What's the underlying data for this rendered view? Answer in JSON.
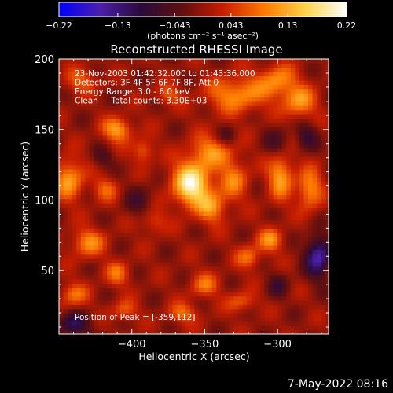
{
  "chart_data": {
    "type": "heatmap",
    "title": "Reconstructed RHESSI Image",
    "xlabel": "Heliocentric X (arcsec)",
    "ylabel": "Heliocentric Y (arcsec)",
    "xlim": [
      -450,
      -265
    ],
    "ylim": [
      5,
      200
    ],
    "xticks": [
      -400,
      -350,
      -300
    ],
    "yticks": [
      50,
      100,
      150,
      200
    ],
    "xtick_labels": [
      "−400",
      "−350",
      "−300"
    ],
    "ytick_labels": [
      "50",
      "100",
      "150",
      "200"
    ],
    "colorbar": {
      "range": [
        -0.22,
        0.22
      ],
      "ticks": [
        -0.22,
        -0.13,
        -0.043,
        0.043,
        0.13,
        0.22
      ],
      "tick_labels": [
        "−0.22",
        "−0.13",
        "−0.043",
        "0.043",
        "0.13",
        "0.22"
      ],
      "unit": "(photons cm⁻² s⁻¹ asec⁻²)",
      "colors": [
        "#0000ff",
        "#4b1fa8",
        "#2a0a3a",
        "#5e0f10",
        "#c81e00",
        "#ff7a00",
        "#ffd24a",
        "#ffffff"
      ]
    },
    "annotations": [
      "23-Nov-2003 01:42:32.000 to 01:43:36.000",
      "Detectors: 3F 4F 5F 6F 7F 8F, Att 0",
      "Energy Range: 3.0 - 6.0 keV",
      "Clean     Total counts: 3.30E+03"
    ],
    "peak_label": "Position of Peak = [-359,112]",
    "peak": {
      "x": -359,
      "y": 112,
      "value": 0.22
    },
    "grid": false,
    "sources": [
      {
        "x": -359,
        "y": 112,
        "sx": 9,
        "sy": 11,
        "amp": 0.2
      },
      {
        "x": -345,
        "y": 95,
        "sx": 7,
        "sy": 8,
        "amp": 0.1
      },
      {
        "x": -443,
        "y": 115,
        "sx": 7,
        "sy": 10,
        "amp": 0.12
      },
      {
        "x": -410,
        "y": 150,
        "sx": 7,
        "sy": 6,
        "amp": 0.12
      },
      {
        "x": -392,
        "y": 135,
        "sx": 5,
        "sy": 6,
        "amp": 0.08
      },
      {
        "x": -418,
        "y": 108,
        "sx": 6,
        "sy": 6,
        "amp": 0.07
      },
      {
        "x": -345,
        "y": 135,
        "sx": 10,
        "sy": 8,
        "amp": 0.1
      },
      {
        "x": -328,
        "y": 175,
        "sx": 14,
        "sy": 9,
        "amp": 0.11
      },
      {
        "x": -300,
        "y": 185,
        "sx": 9,
        "sy": 8,
        "amp": 0.1
      },
      {
        "x": -285,
        "y": 170,
        "sx": 8,
        "sy": 8,
        "amp": 0.11
      },
      {
        "x": -330,
        "y": 115,
        "sx": 7,
        "sy": 10,
        "amp": 0.09
      },
      {
        "x": -298,
        "y": 118,
        "sx": 6,
        "sy": 12,
        "amp": 0.12
      },
      {
        "x": -278,
        "y": 108,
        "sx": 6,
        "sy": 10,
        "amp": 0.11
      },
      {
        "x": -305,
        "y": 72,
        "sx": 6,
        "sy": 6,
        "amp": 0.1
      },
      {
        "x": -320,
        "y": 60,
        "sx": 6,
        "sy": 6,
        "amp": 0.08
      },
      {
        "x": -430,
        "y": 70,
        "sx": 8,
        "sy": 7,
        "amp": 0.1
      },
      {
        "x": -410,
        "y": 48,
        "sx": 6,
        "sy": 6,
        "amp": 0.08
      },
      {
        "x": -440,
        "y": 33,
        "sx": 7,
        "sy": 6,
        "amp": 0.08
      },
      {
        "x": -405,
        "y": 22,
        "sx": 6,
        "sy": 5,
        "amp": 0.07
      },
      {
        "x": -350,
        "y": 40,
        "sx": 7,
        "sy": 6,
        "amp": 0.08
      },
      {
        "x": -325,
        "y": 28,
        "sx": 7,
        "sy": 5,
        "amp": 0.07
      },
      {
        "x": -365,
        "y": 20,
        "sx": 7,
        "sy": 5,
        "amp": 0.08
      },
      {
        "x": -385,
        "y": 85,
        "sx": 6,
        "sy": 6,
        "amp": 0.06
      },
      {
        "x": -375,
        "y": 175,
        "sx": 6,
        "sy": 5,
        "amp": 0.07
      },
      {
        "x": -435,
        "y": 185,
        "sx": 8,
        "sy": 6,
        "amp": 0.07
      },
      {
        "x": -272,
        "y": 60,
        "sx": 6,
        "sy": 10,
        "amp": -0.16
      },
      {
        "x": -440,
        "y": 12,
        "sx": 8,
        "sy": 6,
        "amp": -0.1
      },
      {
        "x": -395,
        "y": 100,
        "sx": 7,
        "sy": 8,
        "amp": -0.05
      },
      {
        "x": -300,
        "y": 140,
        "sx": 6,
        "sy": 8,
        "amp": -0.06
      },
      {
        "x": -280,
        "y": 145,
        "sx": 5,
        "sy": 6,
        "amp": -0.08
      },
      {
        "x": -335,
        "y": 145,
        "sx": 5,
        "sy": 5,
        "amp": -0.05
      },
      {
        "x": -300,
        "y": 40,
        "sx": 5,
        "sy": 6,
        "amp": -0.06
      },
      {
        "x": -420,
        "y": 130,
        "sx": 5,
        "sy": 5,
        "amp": -0.05
      }
    ]
  },
  "footer": {
    "date": "7-May-2022 08:16"
  }
}
